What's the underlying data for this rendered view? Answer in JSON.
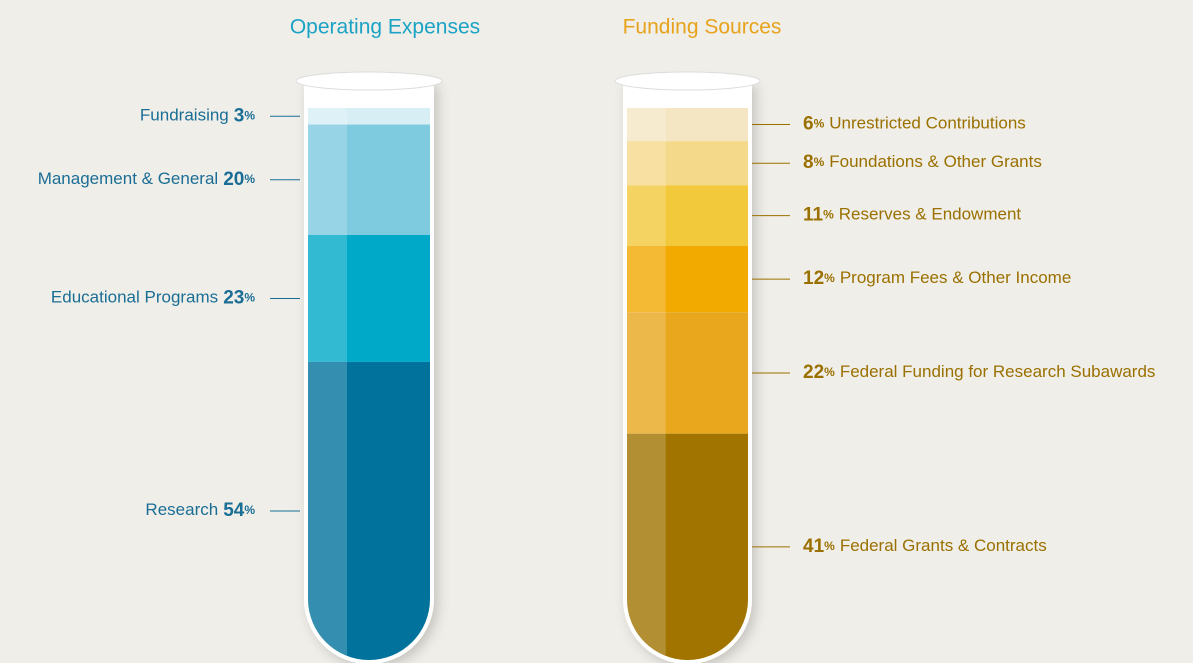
{
  "chart_data": [
    {
      "type": "stacked-bar",
      "title": "Operating Expenses",
      "title_color": "#1ba3c6",
      "label_color": "#1a6e96",
      "categories": [
        "Fundraising",
        "Management & General",
        "Educational Programs",
        "Research"
      ],
      "values": [
        3,
        20,
        23,
        54
      ],
      "value_labels": [
        "3%",
        "20%",
        "23%",
        "54%"
      ],
      "colors": [
        "#d6eef4",
        "#7ecadf",
        "#00a9c8",
        "#00729b"
      ]
    },
    {
      "type": "stacked-bar",
      "title": "Funding Sources",
      "title_color": "#e8a31c",
      "label_color": "#9a7000",
      "categories": [
        "Unrestricted Contributions",
        "Foundations & Other Grants",
        "Reserves & Endowment",
        "Program Fees & Other Income",
        "Federal Funding for Research Subawards",
        "Federal Grants & Contracts"
      ],
      "values": [
        6,
        8,
        11,
        12,
        22,
        41
      ],
      "value_labels": [
        "6%",
        "8%",
        "11%",
        "12%",
        "22%",
        "41%"
      ],
      "colors": [
        "#f5e6c3",
        "#f5d98a",
        "#f3c93c",
        "#f2a900",
        "#e8a71c",
        "#a17400"
      ]
    }
  ]
}
